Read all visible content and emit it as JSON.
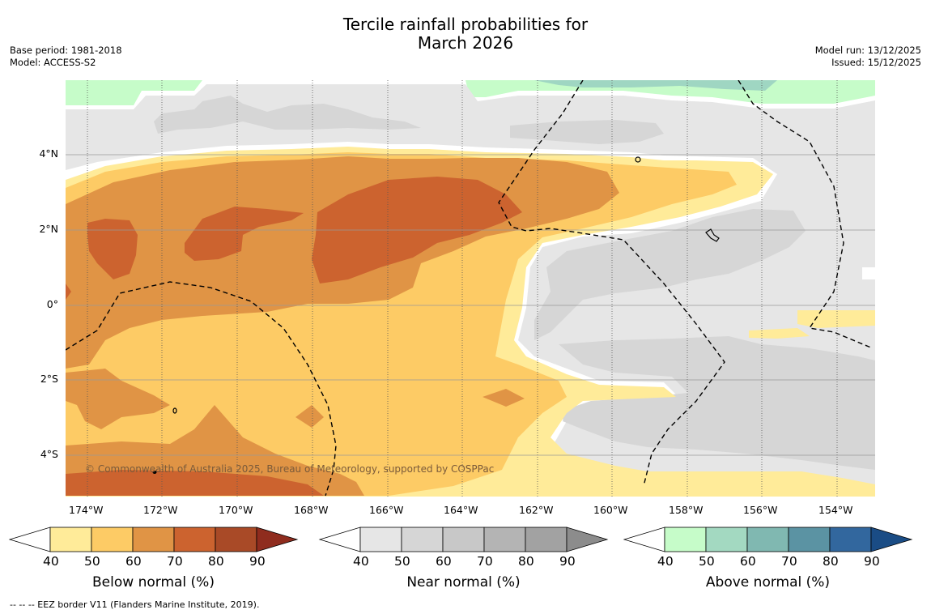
{
  "title": {
    "line1": "Tercile rainfall probabilities for",
    "line2": "March 2026"
  },
  "meta_left": {
    "base_period": "Base period: 1981-2018",
    "model": "Model: ACCESS-S2"
  },
  "meta_right": {
    "model_run": "Model run: 13/12/2025",
    "issued": "Issued: 15/12/2025"
  },
  "map": {
    "lat_labels": [
      "4°N",
      "2°N",
      "0°",
      "2°S",
      "4°S"
    ],
    "lon_labels": [
      "174°W",
      "172°W",
      "170°W",
      "168°W",
      "166°W",
      "164°W",
      "162°W",
      "160°W",
      "158°W",
      "156°W",
      "154°W"
    ],
    "credit": "© Commonwealth of Australia 2025, Bureau of Meteorology, supported by COSPPac",
    "colors": {
      "ocean_bg": "#ffffff",
      "below_50": "#ffeb99",
      "below_60": "#fdcb65",
      "below_70": "#e09445",
      "below_80": "#cc632f",
      "near_50": "#e6e6e6",
      "near_60": "#d6d6d6",
      "above_50": "#c6fcc9",
      "above_60": "#9fd6c2"
    }
  },
  "colorbars": [
    {
      "title": "Below normal (%)",
      "ticks": [
        "40",
        "50",
        "60",
        "70",
        "80",
        "90"
      ],
      "colors": [
        "#ffffff",
        "#ffeb99",
        "#fdcb65",
        "#e09445",
        "#cc632f",
        "#a94a27",
        "#8f2c1e"
      ]
    },
    {
      "title": "Near normal (%)",
      "ticks": [
        "40",
        "50",
        "60",
        "70",
        "80",
        "90"
      ],
      "colors": [
        "#ffffff",
        "#e6e6e6",
        "#d6d6d6",
        "#c8c8c8",
        "#b4b4b4",
        "#a2a2a2",
        "#8c8c8c"
      ]
    },
    {
      "title": "Above normal (%)",
      "ticks": [
        "40",
        "50",
        "60",
        "70",
        "80",
        "90"
      ],
      "colors": [
        "#ffffff",
        "#c6fcc9",
        "#a3d9c1",
        "#80b8b1",
        "#5b93a3",
        "#32679e",
        "#1a4c85"
      ]
    }
  ],
  "footer": {
    "legend_line": "--  --  -- EEZ border V11 (Flanders Marine Institute, 2019)."
  }
}
